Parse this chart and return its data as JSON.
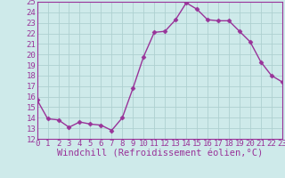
{
  "x": [
    0,
    1,
    2,
    3,
    4,
    5,
    6,
    7,
    8,
    9,
    10,
    11,
    12,
    13,
    14,
    15,
    16,
    17,
    18,
    19,
    20,
    21,
    22,
    23
  ],
  "y": [
    15.7,
    13.9,
    13.8,
    13.1,
    13.6,
    13.4,
    13.3,
    12.8,
    14.0,
    16.8,
    19.8,
    22.1,
    22.2,
    23.3,
    24.9,
    24.3,
    23.3,
    23.2,
    23.2,
    22.2,
    21.2,
    19.3,
    18.0,
    17.4
  ],
  "line_color": "#993399",
  "marker": "D",
  "marker_size": 2.5,
  "background_color": "#ceeaea",
  "grid_color": "#aed0d0",
  "xlabel": "Windchill (Refroidissement éolien,°C)",
  "xlabel_fontsize": 7.5,
  "tick_fontsize": 6.5,
  "ylim": [
    12,
    25
  ],
  "xlim": [
    0,
    23
  ],
  "yticks": [
    12,
    13,
    14,
    15,
    16,
    17,
    18,
    19,
    20,
    21,
    22,
    23,
    24,
    25
  ],
  "xticks": [
    0,
    1,
    2,
    3,
    4,
    5,
    6,
    7,
    8,
    9,
    10,
    11,
    12,
    13,
    14,
    15,
    16,
    17,
    18,
    19,
    20,
    21,
    22,
    23
  ],
  "spine_color": "#993399",
  "linewidth": 1.0
}
